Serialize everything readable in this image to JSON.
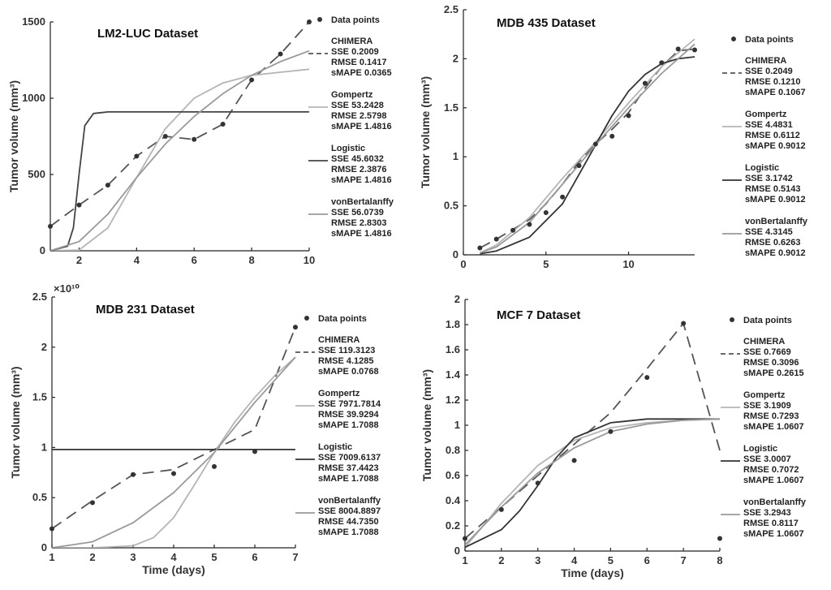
{
  "chart_data": [
    {
      "type": "line",
      "title": "LM2-LUC Dataset",
      "xlabel": "",
      "ylabel": "Tumor volume (mm³)",
      "xlim": [
        1,
        10
      ],
      "ylim": [
        0,
        1500
      ],
      "xticks": [
        2,
        4,
        6,
        8,
        10
      ],
      "yticks": [
        0,
        500,
        1000,
        1500
      ],
      "scale_note": "",
      "data_points": {
        "x": [
          1,
          2,
          3,
          4,
          5,
          6,
          7,
          8,
          9,
          10
        ],
        "y": [
          160,
          300,
          430,
          620,
          750,
          730,
          830,
          1120,
          1290,
          1500
        ]
      },
      "series": [
        {
          "name": "CHIMERA",
          "metrics": [
            "SSE 0.2009",
            "RMSE 0.1417",
            "sMAPE 0.0365"
          ],
          "style": "dashed",
          "color": "#555555",
          "x": [
            1,
            2,
            3,
            4,
            5,
            6,
            7,
            8,
            9,
            10
          ],
          "y": [
            160,
            300,
            430,
            620,
            750,
            730,
            830,
            1120,
            1290,
            1500
          ]
        },
        {
          "name": "Gompertz",
          "metrics": [
            "SSE 53.2428",
            "RMSE 2.5798",
            "sMAPE 1.4816"
          ],
          "style": "solid",
          "color": "#b5b5b5",
          "x": [
            1,
            2,
            3,
            4,
            5,
            6,
            7,
            8,
            9,
            10
          ],
          "y": [
            0,
            5,
            150,
            480,
            800,
            1000,
            1100,
            1150,
            1170,
            1190
          ]
        },
        {
          "name": "Logistic",
          "metrics": [
            "SSE 45.6032",
            "RMSE 2.3876",
            "sMAPE 1.4816"
          ],
          "style": "solid",
          "color": "#444444",
          "x": [
            1,
            1.6,
            1.8,
            2,
            2.2,
            2.5,
            3,
            10
          ],
          "y": [
            0,
            30,
            150,
            500,
            820,
            900,
            910,
            910
          ]
        },
        {
          "name": "vonBertalanffy",
          "metrics": [
            "SSE 56.0739",
            "RMSE 2.8303",
            "sMAPE 1.4816"
          ],
          "style": "solid",
          "color": "#999999",
          "x": [
            1,
            2,
            3,
            4,
            5,
            6,
            7,
            8,
            9,
            10
          ],
          "y": [
            0,
            60,
            240,
            480,
            700,
            880,
            1030,
            1150,
            1240,
            1310
          ]
        }
      ]
    },
    {
      "type": "line",
      "title": "MDB 435 Dataset",
      "xlabel": "",
      "ylabel": "Tumor volume (mm³)",
      "xlim": [
        0,
        14
      ],
      "ylim": [
        0,
        2.5
      ],
      "xticks": [
        0,
        5,
        10
      ],
      "yticks": [
        0,
        0.5,
        1,
        1.5,
        2,
        2.5
      ],
      "scale_note": "",
      "data_points": {
        "x": [
          1,
          2,
          3,
          4,
          5,
          6,
          7,
          8,
          9,
          10,
          11,
          12,
          13,
          14
        ],
        "y": [
          0.07,
          0.16,
          0.25,
          0.31,
          0.43,
          0.59,
          0.91,
          1.13,
          1.21,
          1.42,
          1.75,
          1.96,
          2.1,
          2.09
        ]
      },
      "series": [
        {
          "name": "CHIMERA",
          "metrics": [
            "SSE 0.2049",
            "RMSE 0.1210",
            "sMAPE 0.1067"
          ],
          "style": "dashed",
          "color": "#555555",
          "x": [
            1,
            2,
            3,
            4,
            5,
            6,
            7,
            8,
            9,
            10,
            11,
            12,
            13,
            14
          ],
          "y": [
            0.07,
            0.16,
            0.26,
            0.36,
            0.52,
            0.72,
            0.95,
            1.13,
            1.28,
            1.45,
            1.7,
            1.92,
            2.08,
            2.1
          ]
        },
        {
          "name": "Gompertz",
          "metrics": [
            "SSE 4.4831",
            "RMSE 0.6112",
            "sMAPE 0.9012"
          ],
          "style": "solid",
          "color": "#b5b5b5",
          "x": [
            1,
            2,
            4,
            6,
            8,
            10,
            12,
            14
          ],
          "y": [
            0.02,
            0.1,
            0.38,
            0.78,
            1.15,
            1.55,
            1.92,
            2.2
          ]
        },
        {
          "name": "Logistic",
          "metrics": [
            "SSE 3.1742",
            "RMSE 0.5143",
            "sMAPE 0.9012"
          ],
          "style": "solid",
          "color": "#333333",
          "x": [
            1,
            2,
            4,
            6,
            7,
            8,
            9,
            10,
            11,
            12,
            13,
            14
          ],
          "y": [
            0.01,
            0.04,
            0.18,
            0.52,
            0.82,
            1.12,
            1.42,
            1.67,
            1.84,
            1.95,
            2.0,
            2.02
          ]
        },
        {
          "name": "vonBertalanffy",
          "metrics": [
            "SSE 4.3145",
            "RMSE 0.6263",
            "sMAPE 0.9012"
          ],
          "style": "solid",
          "color": "#999999",
          "x": [
            1,
            2,
            4,
            6,
            8,
            10,
            12,
            14
          ],
          "y": [
            0.02,
            0.08,
            0.33,
            0.72,
            1.12,
            1.5,
            1.85,
            2.15
          ]
        }
      ]
    },
    {
      "type": "line",
      "title": "MDB 231 Dataset",
      "xlabel": "Time (days)",
      "ylabel": "Tumor volume (mm³)",
      "xlim": [
        1,
        7
      ],
      "ylim": [
        0,
        2.5
      ],
      "xticks": [
        1,
        2,
        3,
        4,
        5,
        6,
        7
      ],
      "yticks": [
        0,
        0.5,
        1,
        1.5,
        2,
        2.5
      ],
      "scale_note": "×10¹⁰",
      "data_points": {
        "x": [
          1,
          2,
          3,
          4,
          5,
          6,
          7
        ],
        "y": [
          0.19,
          0.45,
          0.73,
          0.74,
          0.81,
          0.96,
          2.2
        ]
      },
      "series": [
        {
          "name": "CHIMERA",
          "metrics": [
            "SSE 119.3123",
            "RMSE 4.1285",
            "sMAPE 0.0768"
          ],
          "style": "dashed",
          "color": "#555555",
          "x": [
            1,
            2,
            3,
            4,
            5,
            6,
            7
          ],
          "y": [
            0.19,
            0.47,
            0.73,
            0.78,
            0.98,
            1.18,
            2.2
          ]
        },
        {
          "name": "Gompertz",
          "metrics": [
            "SSE 7971.7814",
            "RMSE 39.9294",
            "sMAPE 1.7088"
          ],
          "style": "solid",
          "color": "#b5b5b5",
          "x": [
            1,
            2,
            3,
            3.5,
            4,
            4.5,
            5,
            5.5,
            6,
            6.5,
            7
          ],
          "y": [
            0,
            0,
            0.02,
            0.1,
            0.3,
            0.62,
            0.95,
            1.25,
            1.5,
            1.72,
            1.9
          ]
        },
        {
          "name": "Logistic",
          "metrics": [
            "SSE 7009.6137",
            "RMSE 37.4423",
            "sMAPE 1.7088"
          ],
          "style": "solid",
          "color": "#333333",
          "x": [
            1,
            7
          ],
          "y": [
            0.98,
            0.98
          ]
        },
        {
          "name": "vonBertalanffy",
          "metrics": [
            "SSE 8004.8897",
            "RMSE 44.7350",
            "sMAPE 1.7088"
          ],
          "style": "solid",
          "color": "#999999",
          "x": [
            1,
            2,
            3,
            4,
            5,
            6,
            7
          ],
          "y": [
            0,
            0.06,
            0.25,
            0.55,
            0.95,
            1.45,
            1.9
          ]
        }
      ]
    },
    {
      "type": "line",
      "title": "MCF 7 Dataset",
      "xlabel": "Time (days)",
      "ylabel": "Tumor volume (mm³)",
      "xlim": [
        1,
        8
      ],
      "ylim": [
        0,
        2
      ],
      "xticks": [
        1,
        2,
        3,
        4,
        5,
        6,
        7,
        8
      ],
      "yticks": [
        0,
        0.2,
        0.4,
        0.6,
        0.8,
        1,
        1.2,
        1.4,
        1.6,
        1.8,
        2
      ],
      "scale_note": "",
      "data_points": {
        "x": [
          1,
          2,
          3,
          4,
          5,
          6,
          7,
          8
        ],
        "y": [
          0.1,
          0.33,
          0.54,
          0.72,
          0.95,
          1.38,
          1.81,
          0.1
        ]
      },
      "series": [
        {
          "name": "CHIMERA",
          "metrics": [
            "SSE 0.7669",
            "RMSE 0.3096",
            "sMAPE 0.2615"
          ],
          "style": "dashed",
          "color": "#555555",
          "x": [
            1,
            2,
            3,
            4,
            5,
            6,
            7,
            8
          ],
          "y": [
            0.1,
            0.35,
            0.6,
            0.85,
            1.1,
            1.45,
            1.81,
            0.8
          ]
        },
        {
          "name": "Gompertz",
          "metrics": [
            "SSE 3.1909",
            "RMSE 0.7293",
            "sMAPE 1.0607"
          ],
          "style": "solid",
          "color": "#b5b5b5",
          "x": [
            1,
            1.5,
            2,
            3,
            4,
            5,
            6,
            7,
            8
          ],
          "y": [
            0.03,
            0.2,
            0.38,
            0.68,
            0.88,
            0.98,
            1.02,
            1.04,
            1.05
          ]
        },
        {
          "name": "Logistic",
          "metrics": [
            "SSE 3.0007",
            "RMSE 0.7072",
            "sMAPE 1.0607"
          ],
          "style": "solid",
          "color": "#333333",
          "x": [
            1,
            2,
            2.5,
            3,
            3.5,
            4,
            5,
            6,
            7,
            8
          ],
          "y": [
            0.03,
            0.17,
            0.32,
            0.52,
            0.74,
            0.9,
            1.02,
            1.05,
            1.05,
            1.05
          ]
        },
        {
          "name": "vonBertalanffy",
          "metrics": [
            "SSE 3.2943",
            "RMSE 0.8117",
            "sMAPE 1.0607"
          ],
          "style": "solid",
          "color": "#999999",
          "x": [
            1,
            2,
            3,
            4,
            5,
            6,
            7,
            8
          ],
          "y": [
            0.05,
            0.35,
            0.62,
            0.82,
            0.95,
            1.01,
            1.04,
            1.05
          ]
        }
      ]
    }
  ],
  "legend_data_points_label": "Data points"
}
